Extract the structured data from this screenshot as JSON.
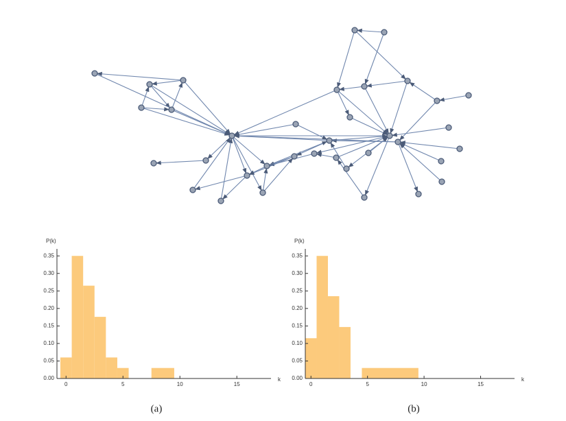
{
  "chart_data": [
    {
      "type": "histogram",
      "caption": "(a)",
      "x_label": "k",
      "y_label": "P(k)",
      "bins": [
        -0.5,
        0.5,
        1.5,
        2.5,
        3.5,
        4.5,
        5.5,
        7.5,
        9.5
      ],
      "values": [
        0.06,
        0.35,
        0.265,
        0.176,
        0.06,
        0.03,
        0,
        0.03
      ],
      "color": "#fcca7c",
      "xlim": [
        -0.8,
        18
      ],
      "ylim": [
        0,
        0.37
      ],
      "xticks": [
        0,
        5,
        10,
        15
      ],
      "yticks": [
        {
          "value": 0,
          "label": "0.00"
        },
        {
          "value": 0.05,
          "label": "0.05"
        },
        {
          "value": 0.1,
          "label": "0.10"
        },
        {
          "value": 0.15,
          "label": "0.15"
        },
        {
          "value": 0.2,
          "label": "0.20"
        },
        {
          "value": 0.25,
          "label": "0.25"
        },
        {
          "value": 0.3,
          "label": "0.30"
        },
        {
          "value": 0.35,
          "label": "0.35"
        }
      ]
    },
    {
      "type": "histogram",
      "caption": "(b)",
      "x_label": "k",
      "y_label": "P(k)",
      "bins": [
        -0.5,
        0.5,
        1.5,
        2.5,
        3.5,
        4.5,
        9.5
      ],
      "values": [
        0.115,
        0.35,
        0.235,
        0.147,
        0,
        0.03
      ],
      "color": "#fcca7c",
      "xlim": [
        -0.5,
        18
      ],
      "ylim": [
        0,
        0.37
      ],
      "xticks": [
        0,
        5,
        10,
        15
      ],
      "yticks": [
        {
          "value": 0,
          "label": "0.00"
        },
        {
          "value": 0.05,
          "label": "0.05"
        },
        {
          "value": 0.1,
          "label": "0.10"
        },
        {
          "value": 0.15,
          "label": "0.15"
        },
        {
          "value": 0.2,
          "label": "0.20"
        },
        {
          "value": 0.25,
          "label": "0.25"
        },
        {
          "value": 0.3,
          "label": "0.30"
        },
        {
          "value": 0.35,
          "label": "0.35"
        }
      ]
    }
  ]
}
